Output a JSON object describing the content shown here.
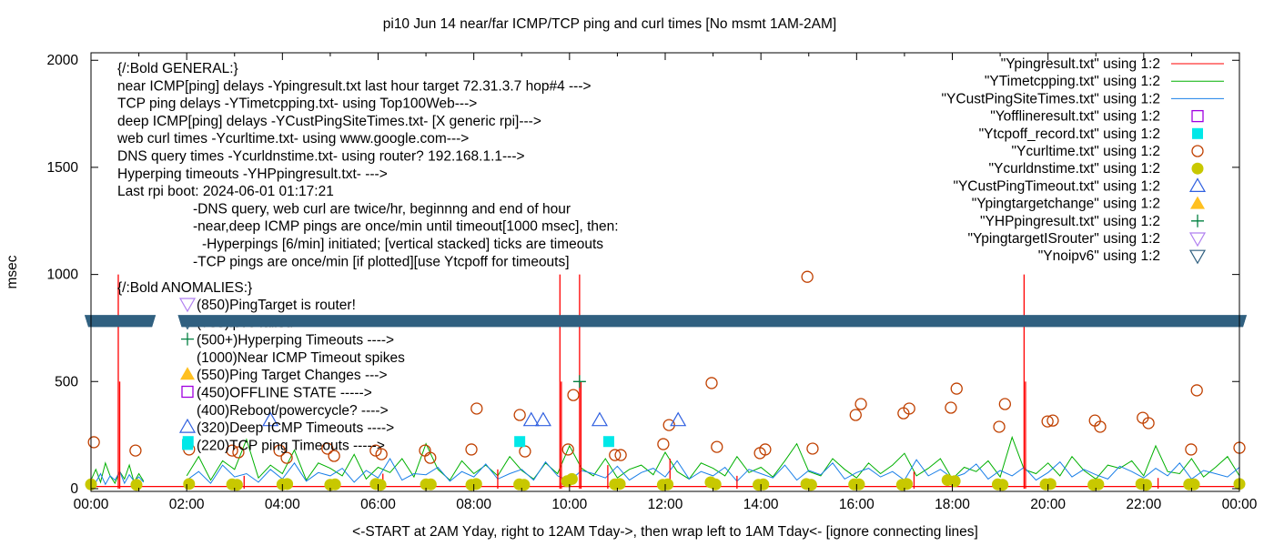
{
  "chart_data": {
    "type": "line",
    "title": "pi10 Jun 14  near/far ICMP/TCP ping and curl times [No msmt 1AM-2AM]",
    "xlabel": "<-START at 2AM Yday, right to 12AM Tday->, then wrap left to 1AM Tday<- [ignore connecting lines]",
    "ylabel": "msec",
    "xlim_hours": [
      0,
      24
    ],
    "ylim": [
      0,
      2035
    ],
    "yticks": [
      "0",
      "500",
      "1000",
      "1500",
      "2000"
    ],
    "xticks": [
      "00:00",
      "02:00",
      "04:00",
      "06:00",
      "08:00",
      "10:00",
      "12:00",
      "14:00",
      "16:00",
      "18:00",
      "20:00",
      "22:00",
      "00:00"
    ],
    "grid": false,
    "legend_position": "top-right",
    "legend": [
      {
        "label": "\"Ypingresult.txt\" using 1:2",
        "style": "line",
        "color": "#ff0000"
      },
      {
        "label": "\"YTimetcpping.txt\" using 1:2",
        "style": "line",
        "color": "#00b000"
      },
      {
        "label": "\"YCustPingSiteTimes.txt\" using 1:2",
        "style": "line",
        "color": "#1a7fe8"
      },
      {
        "label": "\"Yofflineresult.txt\" using 1:2",
        "style": "open-square",
        "color": "#a000e0"
      },
      {
        "label": "\"Ytcpoff_record.txt\" using 1:2",
        "style": "filled-square",
        "color": "#00e8e8"
      },
      {
        "label": "\"Ycurltime.txt\" using 1:2",
        "style": "open-circle",
        "color": "#c04000"
      },
      {
        "label": "\"Ycurldnstime.txt\" using 1:2",
        "style": "filled-circle",
        "color": "#c8c800"
      },
      {
        "label": "\"YCustPingTimeout.txt\" using 1:2",
        "style": "open-triangle-up",
        "color": "#3060e0"
      },
      {
        "label": "\"Ypingtargetchange\" using 1:2",
        "style": "filled-triangle-up",
        "color": "#ffc020"
      },
      {
        "label": "\"YHPpingresult.txt\" using 1:2",
        "style": "plus",
        "color": "#008040"
      },
      {
        "label": "\"YpingtargetISrouter\" using 1:2",
        "style": "open-triangle-down",
        "color": "#b080f0"
      },
      {
        "label": "\"Ynoipv6\" using 1:2",
        "style": "open-triangle-down",
        "color": "#306080"
      }
    ],
    "general_notes": [
      "{/:Bold GENERAL:}",
      "near ICMP[ping] delays -Ypingresult.txt last hour target 72.31.3.7 hop#4 --->",
      "TCP ping delays -YTimetcpping.txt- using Top100Web--->",
      "deep ICMP[ping] delays -YCustPingSiteTimes.txt- [X generic rpi]--->",
      "web curl times -Ycurltime.txt- using www.google.com--->",
      "DNS query times -Ycurldnstime.txt- using router? 192.168.1.1--->",
      "Hyperping timeouts -YHPpingresult.txt- --->",
      "Last rpi boot: 2024-06-01 01:17:21",
      "-DNS query, web curl are twice/hr, beginnng and end of hour",
      "-near,deep ICMP pings are once/min until timeout[1000 msec], then:",
      "-Hyperpings [6/min] initiated; [vertical stacked] ticks are timeouts",
      "-TCP pings are once/min [if plotted][use Ytcpoff for timeouts]"
    ],
    "anomalies_title": "{/:Bold ANOMALIES:}",
    "anomalies": [
      {
        "text": "(850)PingTarget is router!",
        "marker": "open-triangle-down",
        "color": "#b080f0"
      },
      {
        "text": "(785)ipv6 failed",
        "marker": "open-triangle-down",
        "color": "#306080"
      },
      {
        "text": "(500+)Hyperping Timeouts ---->",
        "marker": "plus",
        "color": "#008040"
      },
      {
        "text": "(1000)Near ICMP Timeout spikes",
        "marker": "none",
        "color": "#ff0000"
      },
      {
        "text": "(550)Ping Target Changes --->",
        "marker": "filled-triangle-up",
        "color": "#ffc020"
      },
      {
        "text": "(450)OFFLINE STATE ----->",
        "marker": "open-square",
        "color": "#a000e0"
      },
      {
        "text": "(400)Reboot/powercycle? ---->",
        "marker": "none",
        "color": "#000000"
      },
      {
        "text": "(320)Deep ICMP Timeouts ---->",
        "marker": "open-triangle-up",
        "color": "#3060e0"
      },
      {
        "text": "(220)TCP ping Timeouts ----->",
        "marker": "filled-square",
        "color": "#00e8e8"
      }
    ],
    "series": {
      "near_icmp": {
        "baseline": 10,
        "spikes": [
          [
            0.57,
            1000
          ],
          [
            0.6,
            500
          ],
          [
            9.8,
            1000
          ],
          [
            9.83,
            500
          ],
          [
            10.21,
            1000
          ],
          [
            10.24,
            500
          ],
          [
            19.5,
            1000
          ],
          [
            19.53,
            500
          ],
          [
            3.2,
            60
          ],
          [
            6.1,
            70
          ],
          [
            8.5,
            90
          ],
          [
            10.8,
            110
          ],
          [
            12.1,
            140
          ],
          [
            13.5,
            60
          ],
          [
            17.2,
            80
          ],
          [
            22.3,
            50
          ]
        ]
      },
      "tcp_ping": {
        "segments": [
          {
            "start": 0,
            "step": 0.1,
            "values": [
              40,
              90,
              30,
              120,
              60,
              25,
              80,
              45,
              110,
              30,
              70,
              35
            ]
          },
          {
            "start": 2,
            "step": 0.25,
            "values": [
              60,
              150,
              40,
              130,
              90,
              230,
              50,
              110,
              70,
              180,
              40,
              120,
              95,
              60,
              160,
              45,
              100,
              75,
              140,
              55,
              210,
              90,
              40,
              130,
              70,
              110,
              60,
              150,
              85,
              45,
              120,
              70,
              200,
              95,
              60,
              140,
              50,
              90,
              110,
              65,
              170,
              80,
              45,
              120,
              95,
              60,
              150,
              75,
              100,
              55,
              130,
              210,
              80,
              60,
              140,
              90,
              50,
              120,
              70,
              110,
              165,
              60,
              95,
              140,
              45,
              100,
              80,
              130,
              55,
              240,
              90,
              70,
              120,
              60,
              150,
              85,
              45,
              110,
              95,
              130,
              60,
              200,
              80,
              70,
              140,
              55,
              100,
              150,
              60
            ]
          }
        ]
      },
      "deep_icmp": {
        "segments": [
          {
            "start": 0,
            "step": 0.1,
            "values": [
              50,
              30,
              70,
              20,
              60,
              40,
              80,
              25,
              65,
              35,
              55,
              30
            ]
          },
          {
            "start": 2,
            "step": 0.25,
            "values": [
              40,
              80,
              25,
              110,
              55,
              70,
              30,
              90,
              45,
              120,
              35,
              75,
              60,
              95,
              30,
              85,
              50,
              140,
              40,
              70,
              65,
              100,
              35,
              80,
              55,
              115,
              45,
              70,
              90,
              40,
              125,
              60,
              35,
              85,
              70,
              50,
              105,
              40,
              75,
              95,
              55,
              130,
              45,
              80,
              60,
              100,
              35,
              90,
              70,
              50,
              110,
              40,
              85,
              65,
              120,
              45,
              75,
              95,
              55,
              80,
              40,
              135,
              60,
              90,
              50,
              70,
              115,
              45,
              85,
              60,
              100,
              40,
              75,
              125,
              55,
              90,
              65,
              45,
              105,
              80,
              50,
              95,
              60,
              120,
              45,
              85,
              70,
              55,
              100
            ]
          }
        ]
      },
      "curl_time": [
        [
          0.06,
          217
        ],
        [
          0.93,
          178
        ],
        [
          2.05,
          183
        ],
        [
          2.95,
          178
        ],
        [
          3.08,
          170
        ],
        [
          3.94,
          178
        ],
        [
          4.09,
          144
        ],
        [
          4.94,
          187
        ],
        [
          5.08,
          153
        ],
        [
          5.95,
          178
        ],
        [
          6.07,
          161
        ],
        [
          6.98,
          178
        ],
        [
          7.09,
          144
        ],
        [
          7.95,
          183
        ],
        [
          8.06,
          374
        ],
        [
          8.96,
          344
        ],
        [
          9.07,
          174
        ],
        [
          9.97,
          183
        ],
        [
          10.08,
          437
        ],
        [
          10.95,
          157
        ],
        [
          11.07,
          157
        ],
        [
          11.96,
          208
        ],
        [
          12.08,
          297
        ],
        [
          12.97,
          493
        ],
        [
          13.08,
          195
        ],
        [
          13.98,
          166
        ],
        [
          14.09,
          183
        ],
        [
          14.97,
          989
        ],
        [
          15.08,
          187
        ],
        [
          15.98,
          344
        ],
        [
          16.09,
          395
        ],
        [
          16.98,
          352
        ],
        [
          17.1,
          374
        ],
        [
          17.97,
          378
        ],
        [
          18.09,
          467
        ],
        [
          18.98,
          289
        ],
        [
          19.1,
          395
        ],
        [
          19.99,
          314
        ],
        [
          20.1,
          318
        ],
        [
          20.98,
          318
        ],
        [
          21.09,
          289
        ],
        [
          21.98,
          331
        ],
        [
          22.1,
          306
        ],
        [
          22.99,
          183
        ],
        [
          23.11,
          459
        ],
        [
          24.0,
          191
        ]
      ],
      "dns_time": [
        [
          0.0,
          20
        ],
        [
          0.95,
          18
        ],
        [
          2.05,
          22
        ],
        [
          2.95,
          20
        ],
        [
          3.05,
          18
        ],
        [
          4.0,
          20
        ],
        [
          4.1,
          22
        ],
        [
          5.0,
          18
        ],
        [
          5.1,
          20
        ],
        [
          5.95,
          22
        ],
        [
          6.05,
          18
        ],
        [
          7.0,
          20
        ],
        [
          7.1,
          20
        ],
        [
          7.95,
          18
        ],
        [
          8.05,
          22
        ],
        [
          8.95,
          20
        ],
        [
          9.05,
          18
        ],
        [
          9.95,
          35
        ],
        [
          10.05,
          45
        ],
        [
          10.95,
          20
        ],
        [
          11.05,
          22
        ],
        [
          11.95,
          18
        ],
        [
          12.05,
          20
        ],
        [
          12.95,
          30
        ],
        [
          13.05,
          20
        ],
        [
          13.95,
          18
        ],
        [
          14.05,
          20
        ],
        [
          14.95,
          22
        ],
        [
          15.05,
          18
        ],
        [
          15.95,
          20
        ],
        [
          16.05,
          20
        ],
        [
          16.95,
          18
        ],
        [
          17.05,
          22
        ],
        [
          17.9,
          40
        ],
        [
          18.05,
          35
        ],
        [
          18.95,
          20
        ],
        [
          19.05,
          18
        ],
        [
          19.95,
          20
        ],
        [
          20.05,
          22
        ],
        [
          20.95,
          18
        ],
        [
          21.05,
          20
        ],
        [
          21.95,
          22
        ],
        [
          22.05,
          18
        ],
        [
          22.95,
          20
        ],
        [
          23.05,
          20
        ],
        [
          24.0,
          22
        ]
      ],
      "tcp_timeouts": [
        [
          2.03,
          220
        ],
        [
          8.96,
          220
        ],
        [
          10.82,
          220
        ]
      ],
      "deep_icmp_timeouts": [
        [
          3.75,
          320
        ],
        [
          9.2,
          320
        ],
        [
          9.45,
          320
        ],
        [
          10.63,
          320
        ],
        [
          12.27,
          320
        ]
      ],
      "hyperping_timeouts": [
        [
          10.21,
          500
        ]
      ],
      "noipv6": {
        "value": 785,
        "ranges": [
          [
            0,
            1.2
          ],
          [
            1.95,
            24
          ]
        ]
      }
    }
  }
}
